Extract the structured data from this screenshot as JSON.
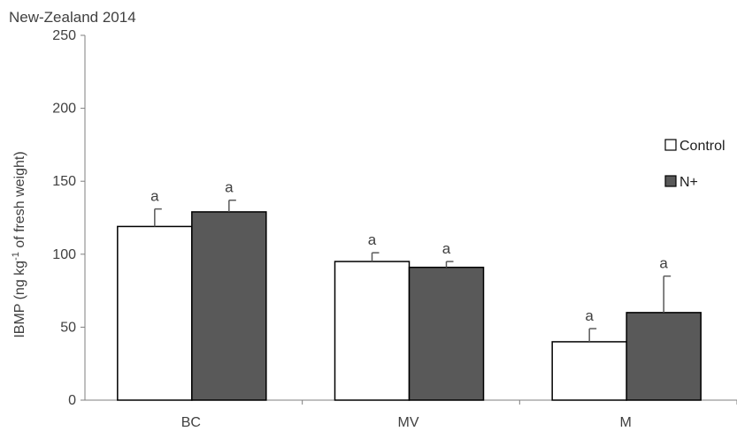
{
  "chart_data": {
    "type": "bar",
    "title": "New-Zealand 2014",
    "ylabel_parts": [
      "IBMP (ng kg",
      "-1",
      " of fresh weight)"
    ],
    "ylim": [
      0,
      250
    ],
    "yticks": [
      0,
      50,
      100,
      150,
      200,
      250
    ],
    "categories": [
      "BC",
      "MV",
      "M"
    ],
    "series": [
      {
        "name": "Control",
        "color": "#ffffff",
        "values": [
          119,
          95,
          40
        ],
        "errors": [
          12,
          6,
          9
        ],
        "labels": [
          "a",
          "a",
          "a"
        ]
      },
      {
        "name": "N+",
        "color": "#595959",
        "values": [
          129,
          91,
          60
        ],
        "errors": [
          8,
          4,
          25
        ],
        "labels": [
          "a",
          "a",
          "a"
        ]
      }
    ],
    "legend_position": "right",
    "grid": false
  }
}
